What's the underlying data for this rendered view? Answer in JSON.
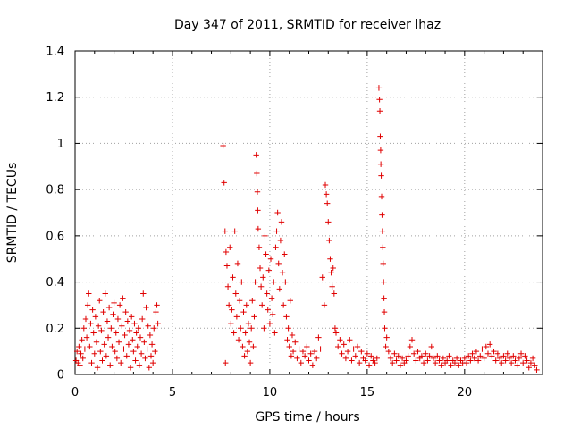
{
  "chart_data": {
    "type": "scatter",
    "title": "Day 347 of 2011, SRMTID for receiver lhaz",
    "xlabel": "GPS time / hours",
    "ylabel": "SRMTID / TECUs",
    "xlim": [
      0,
      24
    ],
    "ylim": [
      0,
      1.4
    ],
    "xticks": [
      0,
      5,
      10,
      15,
      20
    ],
    "yticks": [
      0,
      0.2,
      0.4,
      0.6,
      0.8,
      1,
      1.2,
      1.4
    ],
    "grid": true,
    "marker": "+",
    "color": "#e00000",
    "series": [
      {
        "name": "SRMTID",
        "points": [
          [
            0.05,
            0.06
          ],
          [
            0.1,
            0.1
          ],
          [
            0.15,
            0.05
          ],
          [
            0.2,
            0.12
          ],
          [
            0.25,
            0.04
          ],
          [
            0.3,
            0.09
          ],
          [
            0.35,
            0.15
          ],
          [
            0.4,
            0.07
          ],
          [
            0.45,
            0.2
          ],
          [
            0.5,
            0.11
          ],
          [
            0.55,
            0.24
          ],
          [
            0.6,
            0.16
          ],
          [
            0.65,
            0.3
          ],
          [
            0.7,
            0.35
          ],
          [
            0.75,
            0.12
          ],
          [
            0.8,
            0.22
          ],
          [
            0.85,
            0.05
          ],
          [
            0.9,
            0.28
          ],
          [
            0.95,
            0.18
          ],
          [
            1.0,
            0.09
          ],
          [
            1.05,
            0.25
          ],
          [
            1.1,
            0.14
          ],
          [
            1.15,
            0.03
          ],
          [
            1.2,
            0.21
          ],
          [
            1.25,
            0.32
          ],
          [
            1.3,
            0.1
          ],
          [
            1.35,
            0.19
          ],
          [
            1.4,
            0.06
          ],
          [
            1.45,
            0.27
          ],
          [
            1.5,
            0.13
          ],
          [
            1.55,
            0.35
          ],
          [
            1.6,
            0.08
          ],
          [
            1.65,
            0.23
          ],
          [
            1.7,
            0.16
          ],
          [
            1.75,
            0.29
          ],
          [
            1.8,
            0.04
          ],
          [
            1.85,
            0.2
          ],
          [
            1.9,
            0.12
          ],
          [
            1.95,
            0.26
          ],
          [
            2.0,
            0.31
          ],
          [
            2.05,
            0.1
          ],
          [
            2.1,
            0.18
          ],
          [
            2.15,
            0.07
          ],
          [
            2.2,
            0.24
          ],
          [
            2.25,
            0.14
          ],
          [
            2.3,
            0.3
          ],
          [
            2.35,
            0.05
          ],
          [
            2.4,
            0.21
          ],
          [
            2.45,
            0.33
          ],
          [
            2.5,
            0.11
          ],
          [
            2.55,
            0.17
          ],
          [
            2.6,
            0.27
          ],
          [
            2.65,
            0.08
          ],
          [
            2.7,
            0.23
          ],
          [
            2.75,
            0.13
          ],
          [
            2.8,
            0.19
          ],
          [
            2.85,
            0.03
          ],
          [
            2.9,
            0.25
          ],
          [
            2.95,
            0.15
          ],
          [
            3.0,
            0.1
          ],
          [
            3.05,
            0.22
          ],
          [
            3.1,
            0.06
          ],
          [
            3.15,
            0.18
          ],
          [
            3.2,
            0.12
          ],
          [
            3.25,
            0.2
          ],
          [
            3.3,
            0.04
          ],
          [
            3.35,
            0.16
          ],
          [
            3.4,
            0.09
          ],
          [
            3.45,
            0.24
          ],
          [
            3.5,
            0.35
          ],
          [
            3.55,
            0.14
          ],
          [
            3.6,
            0.07
          ],
          [
            3.65,
            0.29
          ],
          [
            3.7,
            0.11
          ],
          [
            3.75,
            0.21
          ],
          [
            3.8,
            0.03
          ],
          [
            3.85,
            0.17
          ],
          [
            3.9,
            0.08
          ],
          [
            3.95,
            0.13
          ],
          [
            4.0,
            0.05
          ],
          [
            4.05,
            0.2
          ],
          [
            4.1,
            0.1
          ],
          [
            4.15,
            0.27
          ],
          [
            4.2,
            0.3
          ],
          [
            4.25,
            0.22
          ],
          [
            7.6,
            0.99
          ],
          [
            7.65,
            0.83
          ],
          [
            7.7,
            0.62
          ],
          [
            7.72,
            0.05
          ],
          [
            7.75,
            0.53
          ],
          [
            7.8,
            0.47
          ],
          [
            7.85,
            0.38
          ],
          [
            7.9,
            0.3
          ],
          [
            7.95,
            0.55
          ],
          [
            8.0,
            0.22
          ],
          [
            8.05,
            0.28
          ],
          [
            8.1,
            0.42
          ],
          [
            8.15,
            0.18
          ],
          [
            8.2,
            0.62
          ],
          [
            8.25,
            0.35
          ],
          [
            8.3,
            0.25
          ],
          [
            8.35,
            0.48
          ],
          [
            8.4,
            0.15
          ],
          [
            8.45,
            0.32
          ],
          [
            8.5,
            0.2
          ],
          [
            8.55,
            0.4
          ],
          [
            8.6,
            0.12
          ],
          [
            8.65,
            0.27
          ],
          [
            8.7,
            0.08
          ],
          [
            8.75,
            0.18
          ],
          [
            8.8,
            0.3
          ],
          [
            8.85,
            0.1
          ],
          [
            8.9,
            0.22
          ],
          [
            8.95,
            0.14
          ],
          [
            9.0,
            0.05
          ],
          [
            9.05,
            0.2
          ],
          [
            9.1,
            0.32
          ],
          [
            9.15,
            0.12
          ],
          [
            9.2,
            0.25
          ],
          [
            9.25,
            0.4
          ],
          [
            9.3,
            0.95
          ],
          [
            9.33,
            0.87
          ],
          [
            9.36,
            0.79
          ],
          [
            9.38,
            0.71
          ],
          [
            9.4,
            0.63
          ],
          [
            9.45,
            0.55
          ],
          [
            9.5,
            0.46
          ],
          [
            9.55,
            0.38
          ],
          [
            9.6,
            0.3
          ],
          [
            9.65,
            0.42
          ],
          [
            9.7,
            0.2
          ],
          [
            9.75,
            0.6
          ],
          [
            9.8,
            0.52
          ],
          [
            9.85,
            0.35
          ],
          [
            9.9,
            0.28
          ],
          [
            9.95,
            0.45
          ],
          [
            10.0,
            0.22
          ],
          [
            10.05,
            0.5
          ],
          [
            10.1,
            0.33
          ],
          [
            10.15,
            0.26
          ],
          [
            10.2,
            0.4
          ],
          [
            10.25,
            0.18
          ],
          [
            10.3,
            0.55
          ],
          [
            10.35,
            0.62
          ],
          [
            10.4,
            0.7
          ],
          [
            10.45,
            0.48
          ],
          [
            10.5,
            0.37
          ],
          [
            10.55,
            0.58
          ],
          [
            10.6,
            0.66
          ],
          [
            10.65,
            0.44
          ],
          [
            10.7,
            0.3
          ],
          [
            10.75,
            0.52
          ],
          [
            10.8,
            0.4
          ],
          [
            10.85,
            0.25
          ],
          [
            10.9,
            0.15
          ],
          [
            10.95,
            0.2
          ],
          [
            11.0,
            0.12
          ],
          [
            11.05,
            0.32
          ],
          [
            11.1,
            0.08
          ],
          [
            11.15,
            0.17
          ],
          [
            11.2,
            0.1
          ],
          [
            11.3,
            0.14
          ],
          [
            11.4,
            0.07
          ],
          [
            11.5,
            0.11
          ],
          [
            11.6,
            0.05
          ],
          [
            11.7,
            0.1
          ],
          [
            11.8,
            0.08
          ],
          [
            11.9,
            0.12
          ],
          [
            12.0,
            0.06
          ],
          [
            12.1,
            0.09
          ],
          [
            12.2,
            0.04
          ],
          [
            12.3,
            0.1
          ],
          [
            12.4,
            0.07
          ],
          [
            12.5,
            0.16
          ],
          [
            12.6,
            0.11
          ],
          [
            12.7,
            0.42
          ],
          [
            12.8,
            0.3
          ],
          [
            12.85,
            0.82
          ],
          [
            12.9,
            0.78
          ],
          [
            12.95,
            0.74
          ],
          [
            13.0,
            0.66
          ],
          [
            13.05,
            0.58
          ],
          [
            13.1,
            0.5
          ],
          [
            13.15,
            0.44
          ],
          [
            13.2,
            0.38
          ],
          [
            13.25,
            0.46
          ],
          [
            13.3,
            0.35
          ],
          [
            13.35,
            0.2
          ],
          [
            13.4,
            0.18
          ],
          [
            13.5,
            0.12
          ],
          [
            13.6,
            0.15
          ],
          [
            13.7,
            0.09
          ],
          [
            13.8,
            0.13
          ],
          [
            13.9,
            0.07
          ],
          [
            14.0,
            0.1
          ],
          [
            14.1,
            0.15
          ],
          [
            14.2,
            0.06
          ],
          [
            14.3,
            0.11
          ],
          [
            14.4,
            0.08
          ],
          [
            14.5,
            0.12
          ],
          [
            14.6,
            0.05
          ],
          [
            14.7,
            0.1
          ],
          [
            14.8,
            0.07
          ],
          [
            14.9,
            0.06
          ],
          [
            15.0,
            0.09
          ],
          [
            15.1,
            0.04
          ],
          [
            15.2,
            0.08
          ],
          [
            15.3,
            0.06
          ],
          [
            15.4,
            0.05
          ],
          [
            15.5,
            0.07
          ],
          [
            15.6,
            1.24
          ],
          [
            15.63,
            1.19
          ],
          [
            15.65,
            1.14
          ],
          [
            15.67,
            1.03
          ],
          [
            15.69,
            0.97
          ],
          [
            15.7,
            0.91
          ],
          [
            15.72,
            0.86
          ],
          [
            15.74,
            0.77
          ],
          [
            15.76,
            0.69
          ],
          [
            15.78,
            0.62
          ],
          [
            15.8,
            0.55
          ],
          [
            15.82,
            0.48
          ],
          [
            15.84,
            0.4
          ],
          [
            15.86,
            0.33
          ],
          [
            15.88,
            0.27
          ],
          [
            15.9,
            0.2
          ],
          [
            15.95,
            0.12
          ],
          [
            16.0,
            0.16
          ],
          [
            16.1,
            0.1
          ],
          [
            16.2,
            0.07
          ],
          [
            16.3,
            0.05
          ],
          [
            16.4,
            0.09
          ],
          [
            16.5,
            0.06
          ],
          [
            16.6,
            0.08
          ],
          [
            16.7,
            0.04
          ],
          [
            16.8,
            0.07
          ],
          [
            16.9,
            0.05
          ],
          [
            17.0,
            0.06
          ],
          [
            17.1,
            0.08
          ],
          [
            17.2,
            0.12
          ],
          [
            17.3,
            0.15
          ],
          [
            17.4,
            0.09
          ],
          [
            17.5,
            0.06
          ],
          [
            17.6,
            0.1
          ],
          [
            17.7,
            0.07
          ],
          [
            17.8,
            0.08
          ],
          [
            17.9,
            0.05
          ],
          [
            18.0,
            0.09
          ],
          [
            18.1,
            0.06
          ],
          [
            18.2,
            0.08
          ],
          [
            18.3,
            0.12
          ],
          [
            18.4,
            0.07
          ],
          [
            18.5,
            0.05
          ],
          [
            18.6,
            0.08
          ],
          [
            18.7,
            0.06
          ],
          [
            18.8,
            0.04
          ],
          [
            18.9,
            0.07
          ],
          [
            19.0,
            0.05
          ],
          [
            19.1,
            0.06
          ],
          [
            19.2,
            0.08
          ],
          [
            19.3,
            0.04
          ],
          [
            19.4,
            0.06
          ],
          [
            19.5,
            0.05
          ],
          [
            19.6,
            0.07
          ],
          [
            19.7,
            0.04
          ],
          [
            19.8,
            0.06
          ],
          [
            19.9,
            0.05
          ],
          [
            20.0,
            0.07
          ],
          [
            20.1,
            0.05
          ],
          [
            20.2,
            0.08
          ],
          [
            20.3,
            0.06
          ],
          [
            20.4,
            0.09
          ],
          [
            20.5,
            0.07
          ],
          [
            20.6,
            0.1
          ],
          [
            20.7,
            0.06
          ],
          [
            20.8,
            0.08
          ],
          [
            20.9,
            0.11
          ],
          [
            21.0,
            0.07
          ],
          [
            21.1,
            0.12
          ],
          [
            21.2,
            0.09
          ],
          [
            21.3,
            0.13
          ],
          [
            21.4,
            0.08
          ],
          [
            21.5,
            0.1
          ],
          [
            21.6,
            0.06
          ],
          [
            21.7,
            0.09
          ],
          [
            21.8,
            0.07
          ],
          [
            21.9,
            0.05
          ],
          [
            22.0,
            0.08
          ],
          [
            22.1,
            0.06
          ],
          [
            22.2,
            0.09
          ],
          [
            22.3,
            0.07
          ],
          [
            22.4,
            0.05
          ],
          [
            22.5,
            0.08
          ],
          [
            22.6,
            0.06
          ],
          [
            22.7,
            0.04
          ],
          [
            22.8,
            0.07
          ],
          [
            22.9,
            0.09
          ],
          [
            23.0,
            0.05
          ],
          [
            23.1,
            0.08
          ],
          [
            23.2,
            0.06
          ],
          [
            23.3,
            0.03
          ],
          [
            23.4,
            0.05
          ],
          [
            23.5,
            0.07
          ],
          [
            23.6,
            0.04
          ],
          [
            23.7,
            0.02
          ]
        ]
      }
    ]
  }
}
